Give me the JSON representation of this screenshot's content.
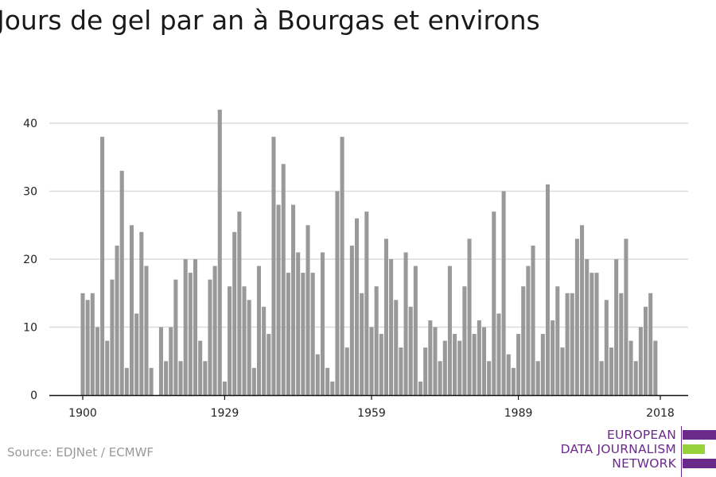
{
  "chart_data": {
    "type": "bar",
    "title": "Jours de gel par an à Bourgas et environs",
    "xlabel": "",
    "ylabel": "",
    "x": [
      1900,
      1901,
      1902,
      1903,
      1904,
      1905,
      1906,
      1907,
      1908,
      1909,
      1910,
      1911,
      1912,
      1913,
      1914,
      1915,
      1916,
      1917,
      1918,
      1919,
      1920,
      1921,
      1922,
      1923,
      1924,
      1925,
      1926,
      1927,
      1928,
      1929,
      1930,
      1931,
      1932,
      1933,
      1934,
      1935,
      1936,
      1937,
      1938,
      1939,
      1940,
      1941,
      1942,
      1943,
      1944,
      1945,
      1946,
      1947,
      1948,
      1949,
      1950,
      1951,
      1952,
      1953,
      1954,
      1955,
      1956,
      1957,
      1958,
      1959,
      1960,
      1961,
      1962,
      1963,
      1964,
      1965,
      1966,
      1967,
      1968,
      1969,
      1970,
      1971,
      1972,
      1973,
      1974,
      1975,
      1976,
      1977,
      1978,
      1979,
      1980,
      1981,
      1982,
      1983,
      1984,
      1985,
      1986,
      1987,
      1988,
      1989,
      1990,
      1991,
      1992,
      1993,
      1994,
      1995,
      1996,
      1997,
      1998,
      1999,
      2000,
      2001,
      2002,
      2003,
      2004,
      2005,
      2006,
      2007,
      2008,
      2009,
      2010,
      2011,
      2012,
      2013,
      2014,
      2015,
      2016,
      2017,
      2018
    ],
    "values": [
      15,
      14,
      15,
      10,
      38,
      8,
      17,
      22,
      33,
      4,
      25,
      12,
      24,
      19,
      4,
      0,
      10,
      5,
      10,
      17,
      5,
      20,
      18,
      20,
      8,
      5,
      17,
      19,
      42,
      2,
      16,
      24,
      27,
      16,
      14,
      4,
      19,
      13,
      9,
      38,
      28,
      34,
      18,
      28,
      21,
      18,
      25,
      18,
      6,
      21,
      4,
      2,
      30,
      38,
      7,
      22,
      26,
      15,
      27,
      10,
      16,
      9,
      23,
      20,
      14,
      7,
      21,
      13,
      19,
      2,
      7,
      11,
      10,
      5,
      8,
      19,
      9,
      8,
      16,
      23,
      9,
      11,
      10,
      5,
      27,
      12,
      30,
      6,
      4,
      9,
      16,
      19,
      22,
      5,
      9,
      31,
      11,
      16,
      7,
      15,
      15,
      23,
      25,
      20,
      18,
      18,
      5,
      14,
      7,
      20,
      15,
      23,
      8,
      5,
      10,
      13,
      15,
      8,
      0
    ],
    "xticks": [
      1900,
      1929,
      1959,
      1989,
      2018
    ],
    "yticks": [
      0,
      10,
      20,
      30,
      40
    ],
    "xlim": [
      1900,
      2018
    ],
    "ylim": [
      0,
      45
    ],
    "grid": true,
    "bar_color": "#999999",
    "grid_color": "#dcdcdc"
  },
  "footer": {
    "source": "Source: EDJNet / ECMWF",
    "logo": {
      "lines": [
        "EUROPEAN",
        "DATA JOURNALISM",
        "NETWORK"
      ],
      "purple": "#6a2a8a",
      "green": "#95d23c"
    }
  }
}
